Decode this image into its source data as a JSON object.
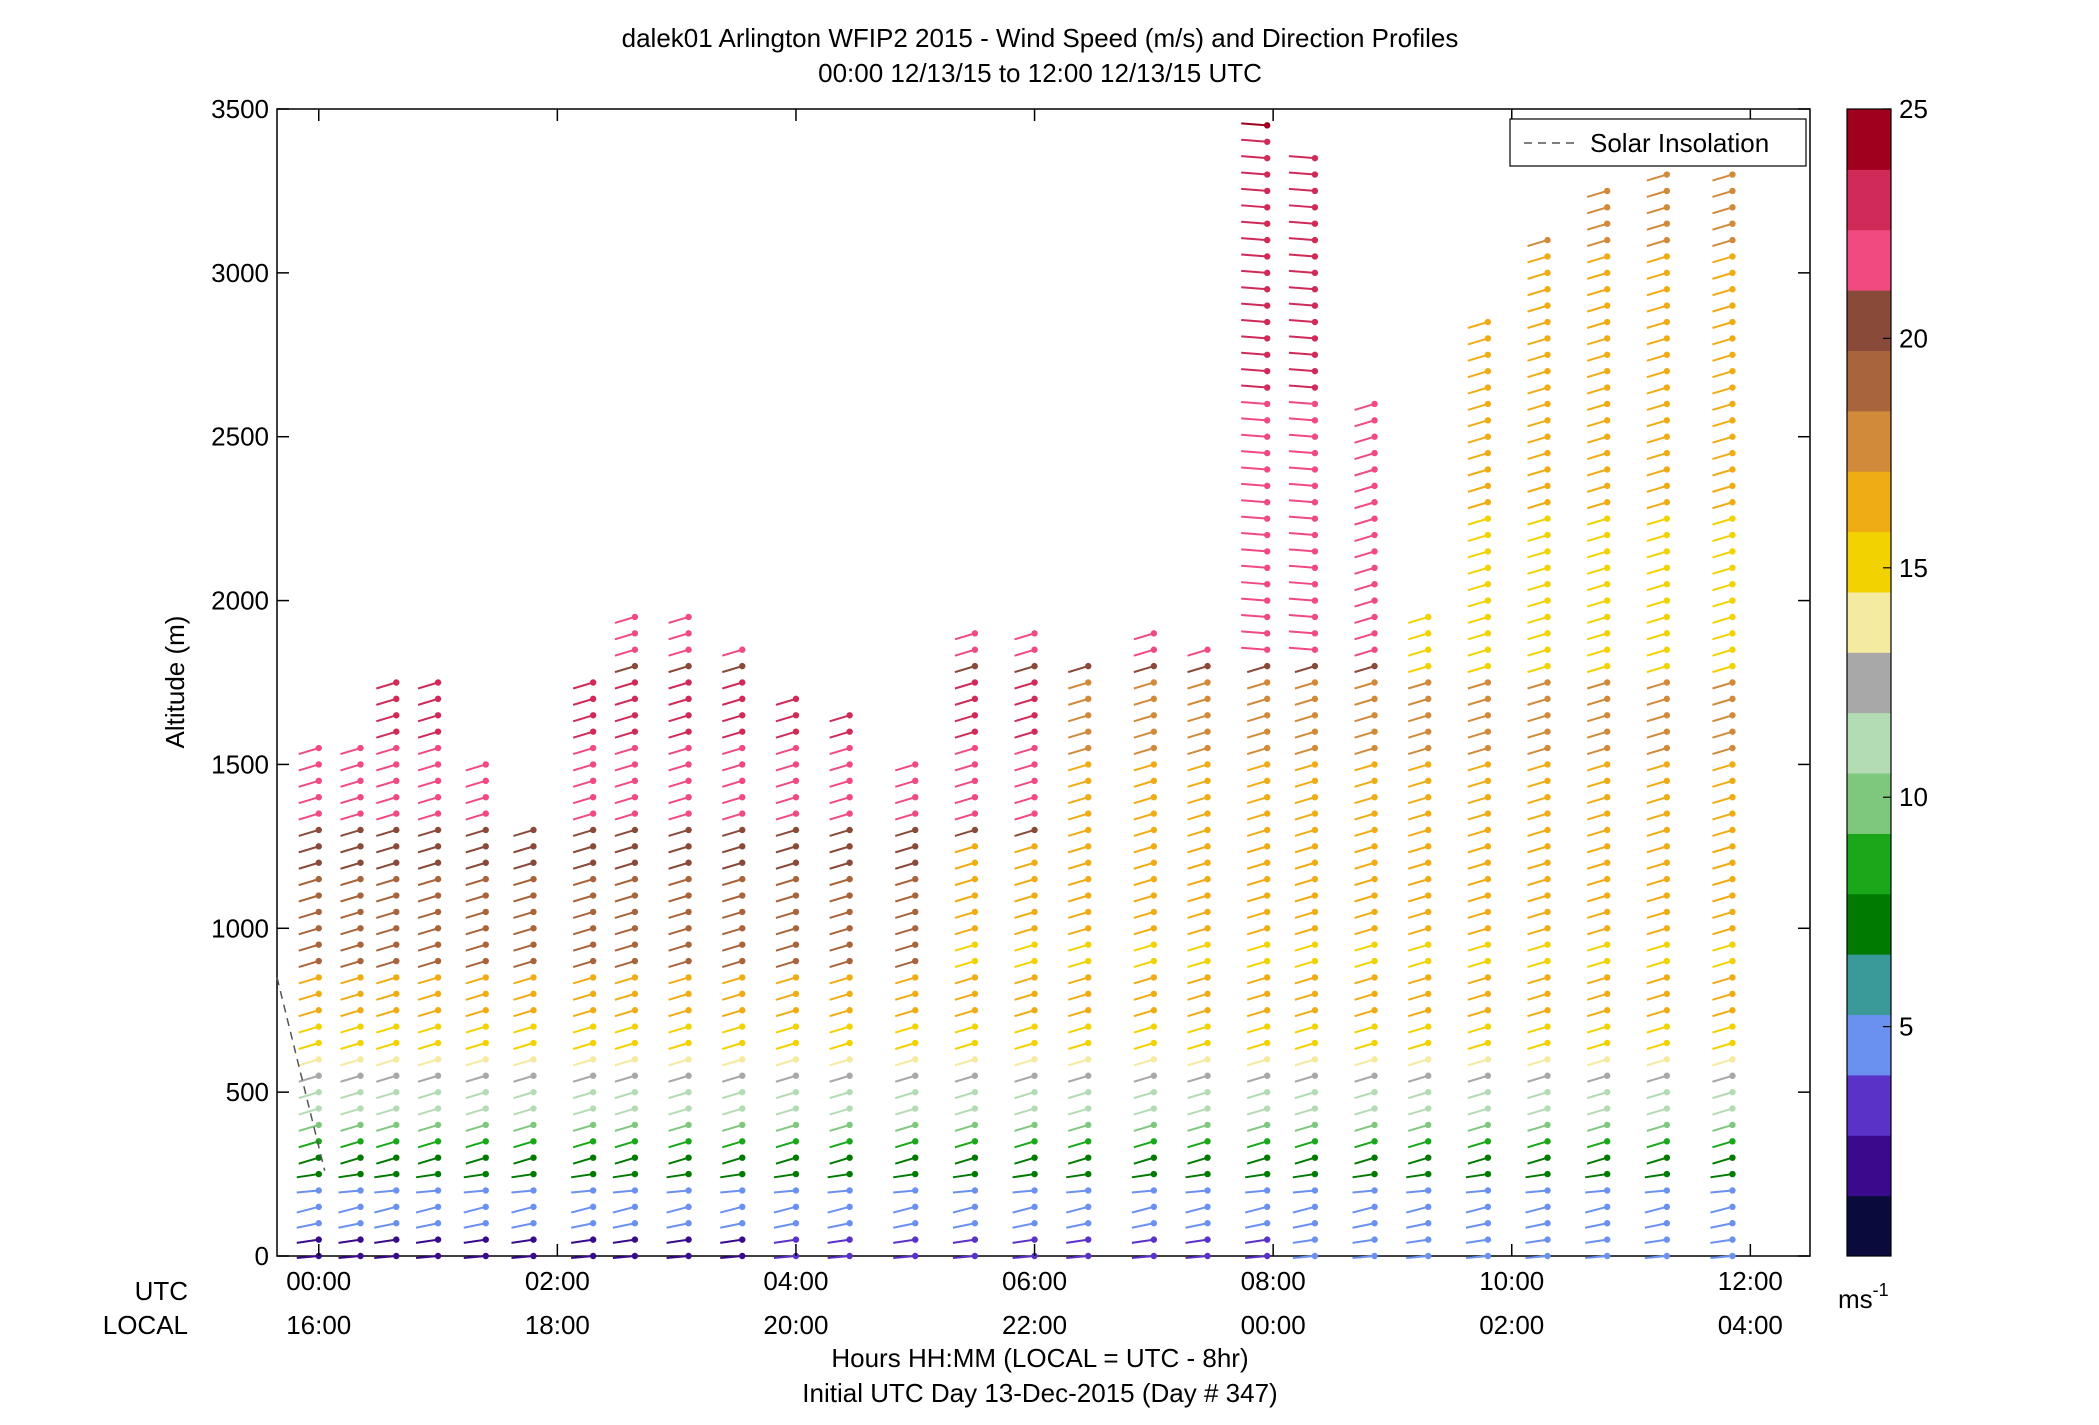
{
  "chart_data": {
    "type": "scatter",
    "title": "dalek01 Arlington WFIP2 2015 - Wind Speed (m/s) and Direction Profiles",
    "subtitle": "00:00 12/13/15 to 12:00 12/13/15  UTC",
    "ylabel": "Altitude (m)",
    "xlabel": "Hours HH:MM  (LOCAL = UTC - 8hr)",
    "xlabel2": "Initial UTC Day 13-Dec-2015 (Day # 347)",
    "ylim": [
      0,
      3500
    ],
    "xlim_hours": [
      -0.35,
      12.5
    ],
    "yticks": [
      0,
      500,
      1000,
      1500,
      2000,
      2500,
      3000,
      3500
    ],
    "xticks_hours": [
      0,
      2,
      4,
      6,
      8,
      10,
      12
    ],
    "utc_row_label": "UTC",
    "local_row_label": "LOCAL",
    "utc_tick_labels": [
      "00:00",
      "02:00",
      "04:00",
      "06:00",
      "08:00",
      "10:00",
      "12:00"
    ],
    "local_tick_labels": [
      "16:00",
      "18:00",
      "20:00",
      "22:00",
      "00:00",
      "02:00",
      "04:00"
    ],
    "legend": {
      "entries": [
        "Solar Insolation"
      ],
      "placement": "top-right"
    },
    "colorbar": {
      "ticks": [
        5,
        10,
        15,
        20,
        25
      ],
      "range": [
        0,
        25
      ],
      "unit": "ms",
      "unit_exp": "-1",
      "colors": [
        "#0a0a3c",
        "#3a0a8c",
        "#5a32c8",
        "#6a90f0",
        "#3a9a9a",
        "#007a00",
        "#1aa81a",
        "#7ec87e",
        "#b4dcb4",
        "#a8a8a8",
        "#f4eaa0",
        "#f2d200",
        "#f0ac14",
        "#d08a3a",
        "#a8643a",
        "#8a4a3a",
        "#f04a80",
        "#d02a58",
        "#a0001e"
      ]
    },
    "solar_insolation": {
      "x": [
        -0.35,
        0.05
      ],
      "y": [
        850,
        260
      ]
    },
    "profiles": [
      {
        "x": 0.0,
        "top": 1570,
        "bottom": 0
      },
      {
        "x": 0.35,
        "top": 1580,
        "bottom": 0
      },
      {
        "x": 0.65,
        "top": 1780,
        "bottom": 0
      },
      {
        "x": 1.0,
        "top": 1780,
        "bottom": 0
      },
      {
        "x": 1.4,
        "top": 1520,
        "bottom": 0
      },
      {
        "x": 1.8,
        "top": 1300,
        "bottom": 0
      },
      {
        "x": 2.3,
        "top": 1790,
        "bottom": 0
      },
      {
        "x": 2.65,
        "top": 1950,
        "bottom": 0
      },
      {
        "x": 3.1,
        "top": 1950,
        "bottom": 0
      },
      {
        "x": 3.55,
        "top": 1880,
        "bottom": 0
      },
      {
        "x": 4.0,
        "top": 1700,
        "bottom": 0
      },
      {
        "x": 4.45,
        "top": 1650,
        "bottom": 0
      },
      {
        "x": 5.0,
        "top": 1500,
        "bottom": 0
      },
      {
        "x": 5.5,
        "top": 1930,
        "bottom": 0
      },
      {
        "x": 6.0,
        "top": 1900,
        "bottom": 0
      },
      {
        "x": 6.45,
        "top": 1820,
        "bottom": 0
      },
      {
        "x": 7.0,
        "top": 1900,
        "bottom": 0
      },
      {
        "x": 7.45,
        "top": 1880,
        "bottom": 0
      },
      {
        "x": 7.95,
        "top": 3450,
        "bottom": 0
      },
      {
        "x": 8.35,
        "top": 3380,
        "bottom": 0
      },
      {
        "x": 8.85,
        "top": 2600,
        "bottom": 0
      },
      {
        "x": 9.3,
        "top": 1960,
        "bottom": 0
      },
      {
        "x": 9.8,
        "top": 2850,
        "bottom": 0
      },
      {
        "x": 10.3,
        "top": 3130,
        "bottom": 0
      },
      {
        "x": 10.8,
        "top": 3250,
        "bottom": 0
      },
      {
        "x": 11.3,
        "top": 3480,
        "bottom": 0
      },
      {
        "x": 11.85,
        "top": 3480,
        "bottom": 0
      }
    ]
  }
}
